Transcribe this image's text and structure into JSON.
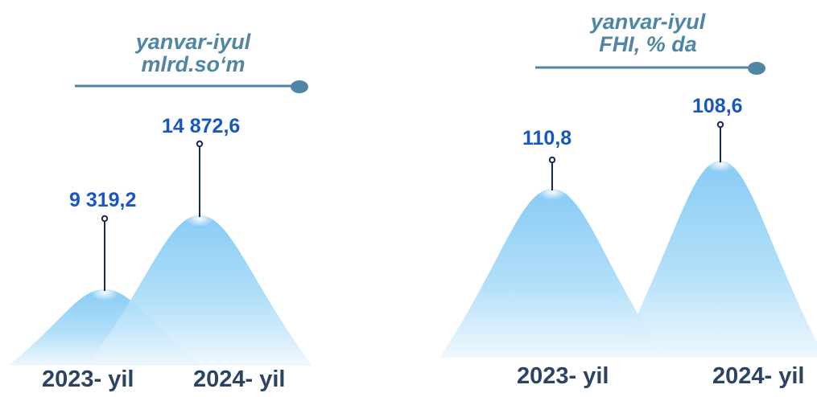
{
  "chart_data": [
    {
      "type": "area",
      "title_lines": [
        "yanvar-iyul",
        "mlrd.so‘m"
      ],
      "categories": [
        "2023- yil",
        "2024- yil"
      ],
      "values": [
        9319.2,
        14872.6
      ],
      "value_labels": [
        "9 319,2",
        "14 872,6"
      ]
    },
    {
      "type": "area",
      "title_lines": [
        "yanvar-iyul",
        "FHI, % da"
      ],
      "categories": [
        "2023- yil",
        "2024- yil"
      ],
      "values": [
        110.8,
        108.6
      ],
      "value_labels": [
        "110,8",
        "108,6"
      ]
    }
  ],
  "colors": {
    "peak_light": "#8ecdf5",
    "peak_fade": "#e8f4fc",
    "title_text": "#4f86a6",
    "rule_line": "#4f86a6",
    "value_text": "#1856c2",
    "year_text": "#2b4463",
    "pin_line": "#1c2a5a"
  }
}
